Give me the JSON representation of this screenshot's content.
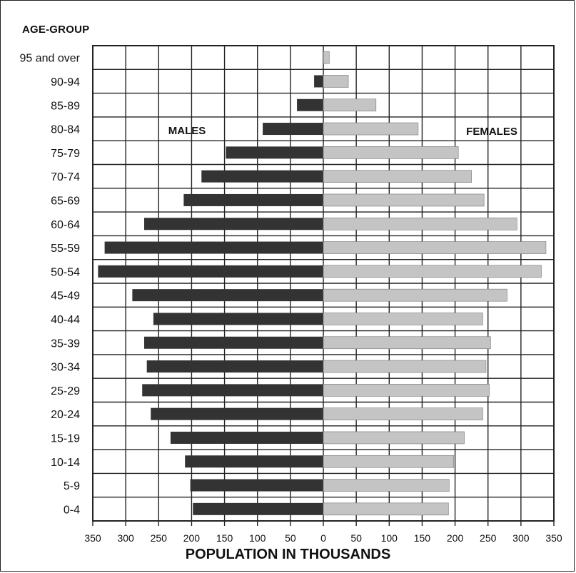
{
  "chart_data": {
    "type": "bar",
    "orientation": "horizontal",
    "subtype": "population-pyramid",
    "y_axis_title": "AGE-GROUP",
    "xlabel": "POPULATION IN THOUSANDS",
    "categories": [
      "95 and over",
      "90-94",
      "85-89",
      "80-84",
      "75-79",
      "70-74",
      "65-69",
      "60-64",
      "55-59",
      "50-54",
      "45-49",
      "40-44",
      "35-39",
      "30-34",
      "25-29",
      "20-24",
      "15-19",
      "10-14",
      "5-9",
      "0-4"
    ],
    "series": [
      {
        "name": "MALES",
        "color": "#333333",
        "values": [
          1,
          14,
          40,
          92,
          148,
          185,
          212,
          272,
          332,
          342,
          290,
          258,
          272,
          268,
          275,
          262,
          232,
          210,
          202,
          198
        ]
      },
      {
        "name": "FEMALES",
        "color": "#c4c4c4",
        "values": [
          9,
          38,
          80,
          144,
          205,
          225,
          244,
          294,
          338,
          331,
          279,
          242,
          254,
          247,
          252,
          242,
          214,
          198,
          191,
          190
        ]
      }
    ],
    "xlim": [
      -350,
      350
    ],
    "xticks": [
      -350,
      -300,
      -250,
      -200,
      -150,
      -100,
      -50,
      0,
      50,
      100,
      150,
      200,
      250,
      300,
      350
    ],
    "xtick_labels": [
      "350",
      "300",
      "250",
      "200",
      "150",
      "100",
      "50",
      "0",
      "50",
      "100",
      "150",
      "200",
      "250",
      "300",
      "350"
    ],
    "grid": true
  }
}
